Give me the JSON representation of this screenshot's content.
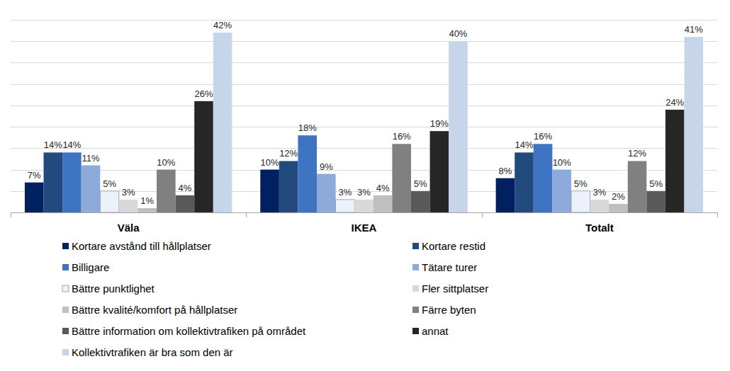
{
  "chart_data": {
    "type": "bar",
    "categories": [
      "Väla",
      "IKEA",
      "Totalt"
    ],
    "series": [
      {
        "name": "Kortare avstånd till hållplatser",
        "color": "#002060",
        "values": [
          7,
          10,
          8
        ],
        "value_labels": [
          "7%",
          "10%",
          "8%"
        ]
      },
      {
        "name": "Kortare restid",
        "color": "#234a7d",
        "values": [
          14,
          12,
          14
        ],
        "value_labels": [
          "14%",
          "12%",
          "14%"
        ]
      },
      {
        "name": "Billigare",
        "color": "#3f74c2",
        "values": [
          14,
          18,
          16
        ],
        "value_labels": [
          "14%",
          "18%",
          "16%"
        ]
      },
      {
        "name": "Tätare turer",
        "color": "#8eaadb",
        "values": [
          11,
          9,
          10
        ],
        "value_labels": [
          "11%",
          "9%",
          "10%"
        ]
      },
      {
        "name": "Bättre punktlighet",
        "color": "#edf1f9",
        "values": [
          5,
          3,
          5
        ],
        "value_labels": [
          "5%",
          "3%",
          "5%"
        ]
      },
      {
        "name": "Fler sittplatser",
        "color": "#d9d9d9",
        "values": [
          3,
          3,
          3
        ],
        "value_labels": [
          "3%",
          "3%",
          "3%"
        ]
      },
      {
        "name": "Bättre kvalité/komfort på hållplatser",
        "color": "#bfbfbf",
        "values": [
          1,
          4,
          2
        ],
        "value_labels": [
          "1%",
          "4%",
          "2%"
        ]
      },
      {
        "name": "Färre byten",
        "color": "#808080",
        "values": [
          10,
          16,
          12
        ],
        "value_labels": [
          "10%",
          "16%",
          "12%"
        ]
      },
      {
        "name": "Bättre information om kollektivtrafiken på området",
        "color": "#595959",
        "values": [
          4,
          5,
          5
        ],
        "value_labels": [
          "4%",
          "5%",
          "5%"
        ]
      },
      {
        "name": "annat",
        "color": "#262626",
        "values": [
          26,
          19,
          24
        ],
        "value_labels": [
          "26%",
          "19%",
          "24%"
        ]
      },
      {
        "name": "Kollektivtrafiken är bra som den är",
        "color": "#c6d5ea",
        "values": [
          42,
          40,
          41
        ],
        "value_labels": [
          "42%",
          "40%",
          "41%"
        ]
      }
    ],
    "ylim": [
      0,
      45
    ],
    "yticks": [
      0,
      5,
      10,
      15,
      20,
      25,
      30,
      35,
      40,
      45
    ],
    "grid": true,
    "data_labels": true,
    "tick_labels": "x",
    "legend": "bottom"
  }
}
